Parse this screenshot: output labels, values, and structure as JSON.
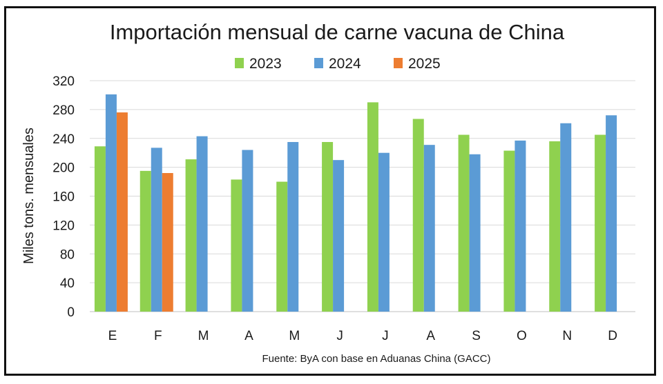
{
  "chart_data": {
    "type": "bar",
    "title": "Importación mensual de carne vacuna de China",
    "ylabel": "Miles tons. mensuales",
    "xlabel": "",
    "source": "Fuente: ByA con base en Aduanas China (GACC)",
    "categories": [
      "E",
      "F",
      "M",
      "A",
      "M",
      "J",
      "J",
      "A",
      "S",
      "O",
      "N",
      "D"
    ],
    "ylim": [
      0,
      320
    ],
    "yticks": [
      0,
      40,
      80,
      120,
      160,
      200,
      240,
      280,
      320
    ],
    "grid": true,
    "legend_position": "top",
    "series": [
      {
        "name": "2023",
        "color": "#8fd14f",
        "values": [
          229,
          195,
          211,
          183,
          180,
          235,
          290,
          267,
          245,
          223,
          236,
          245
        ]
      },
      {
        "name": "2024",
        "color": "#5b9bd5",
        "values": [
          301,
          227,
          243,
          224,
          235,
          210,
          220,
          231,
          218,
          237,
          261,
          272
        ]
      },
      {
        "name": "2025",
        "color": "#ed7d31",
        "values": [
          276,
          192,
          null,
          null,
          null,
          null,
          null,
          null,
          null,
          null,
          null,
          null
        ]
      }
    ]
  }
}
